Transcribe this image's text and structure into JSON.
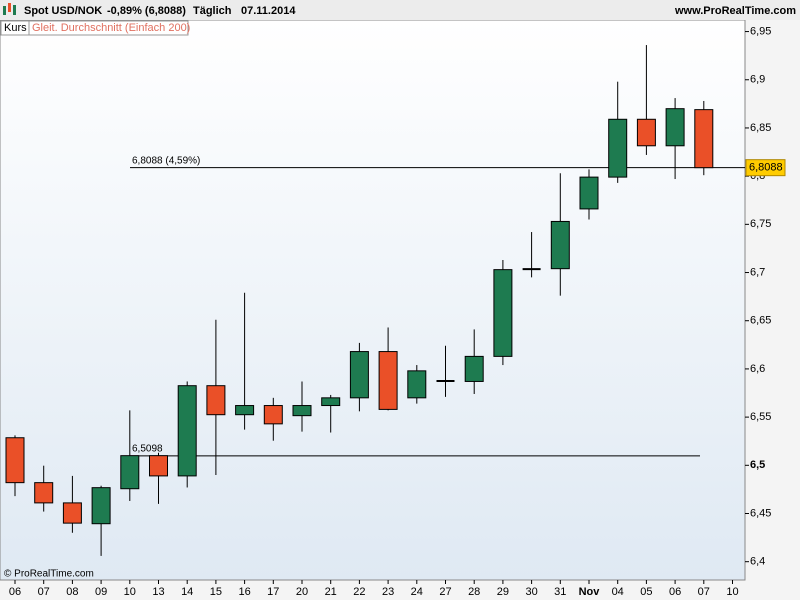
{
  "header": {
    "instrument": "Spot USD/NOK",
    "change": "-0,89% (6,8088)",
    "period": "Täglich",
    "date": "07.11.2014",
    "site": "www.ProRealTime.com"
  },
  "legend": {
    "price": "Kurs",
    "indicator": "Gleit. Durchschnitt (Einfach 200)"
  },
  "footer": "© ProRealTime.com",
  "chart_data": {
    "type": "candlestick",
    "categories": [
      "06",
      "07",
      "08",
      "09",
      "10",
      "13",
      "14",
      "15",
      "16",
      "17",
      "20",
      "21",
      "22",
      "23",
      "24",
      "27",
      "28",
      "29",
      "30",
      "31",
      "Nov",
      "04",
      "05",
      "06",
      "07",
      "10"
    ],
    "open": [
      6.5286,
      6.482,
      6.461,
      6.4394,
      6.4757,
      6.51,
      6.489,
      6.5826,
      6.5525,
      6.562,
      6.5515,
      6.562,
      6.57,
      6.618,
      6.57,
      6.587,
      6.587,
      6.613,
      6.703,
      6.704,
      6.766,
      6.799,
      6.859,
      6.8315,
      6.869,
      null
    ],
    "high": [
      6.531,
      6.4996,
      6.489,
      6.4788,
      6.557,
      6.513,
      6.587,
      6.651,
      6.679,
      6.57,
      6.587,
      6.573,
      6.627,
      6.643,
      6.604,
      6.624,
      6.641,
      6.713,
      6.742,
      6.803,
      6.807,
      6.898,
      6.936,
      6.881,
      6.878,
      null
    ],
    "low": [
      6.468,
      6.452,
      6.43,
      6.406,
      6.463,
      6.46,
      6.477,
      6.49,
      6.537,
      6.5255,
      6.535,
      6.534,
      6.556,
      6.557,
      6.564,
      6.571,
      6.574,
      6.604,
      6.695,
      6.676,
      6.755,
      6.793,
      6.822,
      6.797,
      6.801,
      null
    ],
    "close": [
      6.482,
      6.461,
      6.44,
      6.4768,
      6.51,
      6.489,
      6.5826,
      6.5525,
      6.562,
      6.543,
      6.562,
      6.57,
      6.618,
      6.558,
      6.598,
      6.588,
      6.613,
      6.703,
      6.704,
      6.753,
      6.799,
      6.859,
      6.8315,
      6.87,
      6.8088,
      null
    ],
    "up_color": "#1e7b50",
    "down_color": "#ea5028",
    "ylim": [
      6.381,
      6.962
    ],
    "yticks": [
      {
        "value": 6.4,
        "label": "6,4"
      },
      {
        "value": 6.45,
        "label": "6,45"
      },
      {
        "value": 6.5,
        "label": "6,5"
      },
      {
        "value": 6.55,
        "label": "6,55"
      },
      {
        "value": 6.6,
        "label": "6,6"
      },
      {
        "value": 6.65,
        "label": "6,65"
      },
      {
        "value": 6.7,
        "label": "6,7"
      },
      {
        "value": 6.75,
        "label": "6,75"
      },
      {
        "value": 6.8,
        "label": "6,8"
      },
      {
        "value": 6.85,
        "label": "6,85"
      },
      {
        "value": 6.9,
        "label": "6,9"
      },
      {
        "value": 6.95,
        "label": "6,95"
      }
    ],
    "levels": [
      {
        "value": 6.8088,
        "label": "6,8088 (4,59%)"
      },
      {
        "value": 6.5098,
        "label": "6,5098"
      }
    ],
    "last_price": {
      "value": 6.8088,
      "label": "6,8088"
    },
    "grid": false
  }
}
